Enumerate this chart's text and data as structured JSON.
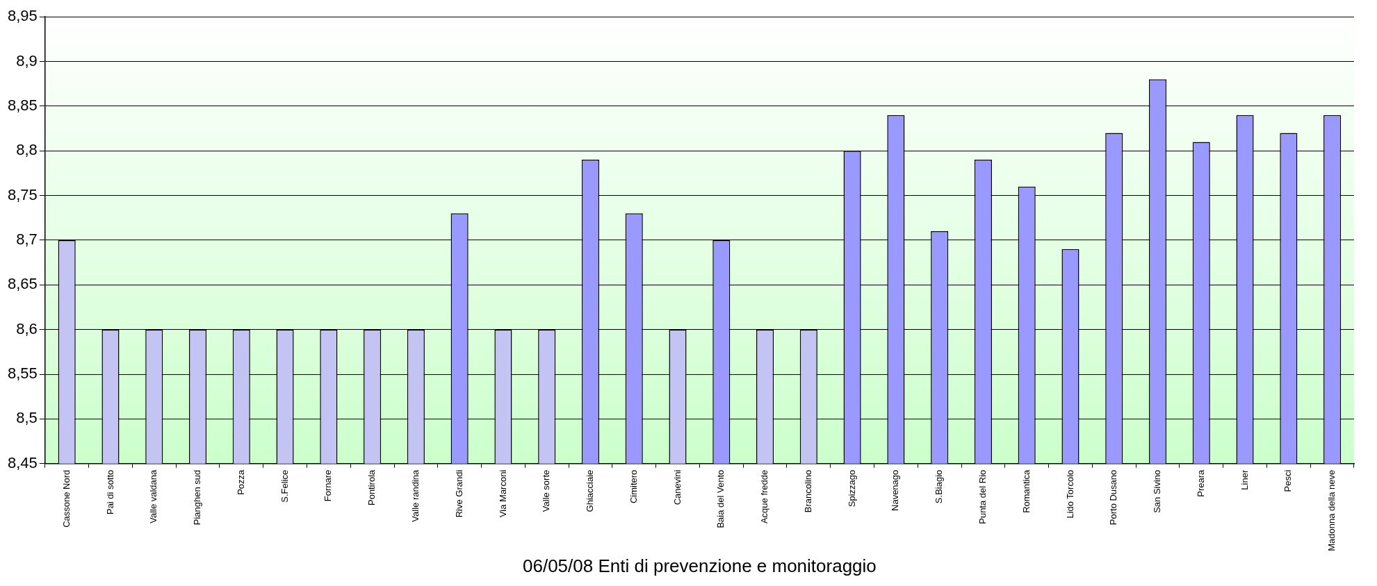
{
  "chart_data": {
    "type": "bar",
    "xlabel": "06/05/08 Enti di prevenzione e monitoraggio",
    "categories": [
      "Cassone Nord",
      "Pai di sotto",
      "Valle valdana",
      "Pianghen sud",
      "Pozza",
      "S.Felice",
      "Fornare",
      "Pontirola",
      "Valle randina",
      "Rive Grandi",
      "Via Marconi",
      "Valle sorte",
      "Ghiacciaie",
      "Cimitero",
      "Canevini",
      "Baia del Vento",
      "Acque fredde",
      "Brancolino",
      "Spizzago",
      "Navenago",
      "S.Biagio",
      "Punta del Rio",
      "Romantica",
      "Lido Torcolo",
      "Porto Dusano",
      "San Sivino",
      "Preara",
      "Liner",
      "Pesci",
      "Madonna della neve"
    ],
    "values": [
      8.7,
      8.6,
      8.6,
      8.6,
      8.6,
      8.6,
      8.6,
      8.6,
      8.6,
      8.73,
      8.6,
      8.6,
      8.79,
      8.73,
      8.6,
      8.7,
      8.6,
      8.6,
      8.8,
      8.84,
      8.71,
      8.79,
      8.76,
      8.69,
      8.82,
      8.88,
      8.81,
      8.84,
      8.82,
      8.84
    ],
    "colors": [
      "#c4c4f4",
      "#c4c4f4",
      "#c4c4f4",
      "#c4c4f4",
      "#c4c4f4",
      "#c4c4f4",
      "#c4c4f4",
      "#c4c4f4",
      "#c4c4f4",
      "#9999ff",
      "#c4c4f4",
      "#c4c4f4",
      "#9999ff",
      "#9999ff",
      "#c4c4f4",
      "#9999ff",
      "#c4c4f4",
      "#c4c4f4",
      "#9999ff",
      "#9999ff",
      "#9999ff",
      "#9999ff",
      "#9999ff",
      "#9999ff",
      "#9999ff",
      "#9999ff",
      "#9999ff",
      "#9999ff",
      "#9999ff",
      "#9999ff"
    ],
    "ylim": [
      8.45,
      8.95
    ],
    "yticks": [
      {
        "value": 8.45,
        "label": "8,45"
      },
      {
        "value": 8.5,
        "label": "8,5"
      },
      {
        "value": 8.55,
        "label": "8,55"
      },
      {
        "value": 8.6,
        "label": "8,6"
      },
      {
        "value": 8.65,
        "label": "8,65"
      },
      {
        "value": 8.7,
        "label": "8,7"
      },
      {
        "value": 8.75,
        "label": "8,75"
      },
      {
        "value": 8.8,
        "label": "8,8"
      },
      {
        "value": 8.85,
        "label": "8,85"
      },
      {
        "value": 8.9,
        "label": "8,9"
      },
      {
        "value": 8.95,
        "label": "8,95"
      }
    ],
    "grid": "y",
    "legend": false
  }
}
